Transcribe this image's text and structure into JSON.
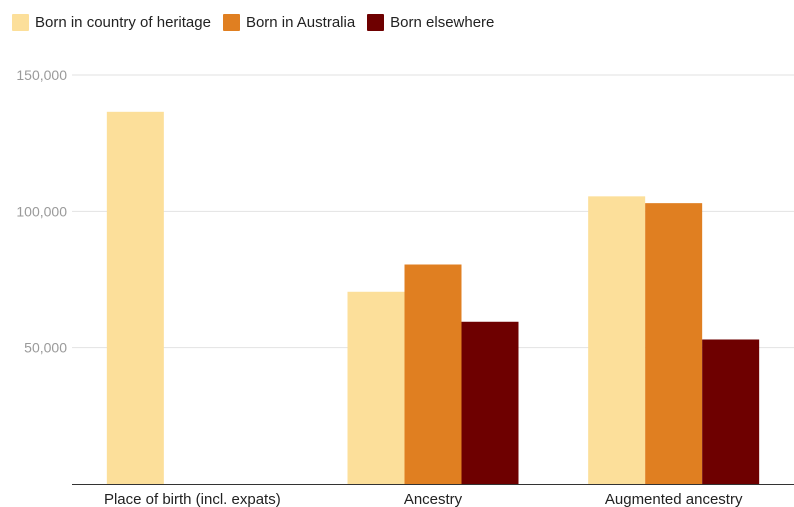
{
  "chart_data": {
    "type": "bar",
    "categories": [
      "Place of birth (incl. expats)",
      "Ancestry",
      "Augmented ancestry"
    ],
    "series": [
      {
        "name": "Born in country of heritage",
        "color": "#FCDF9A",
        "values": [
          136500,
          70500,
          105500
        ]
      },
      {
        "name": "Born in Australia",
        "color": "#E07F21",
        "values": [
          null,
          80500,
          103000
        ]
      },
      {
        "name": "Born elsewhere",
        "color": "#6E0000",
        "values": [
          null,
          59500,
          53000
        ]
      }
    ],
    "yticks": [
      {
        "value": 50000,
        "label": "50,000"
      },
      {
        "value": 100000,
        "label": "100,000"
      },
      {
        "value": 150000,
        "label": "150,000"
      }
    ],
    "ylim": [
      0,
      150000
    ],
    "grid": true,
    "legend_position": "top-left",
    "title": "",
    "xlabel": "",
    "ylabel": ""
  }
}
